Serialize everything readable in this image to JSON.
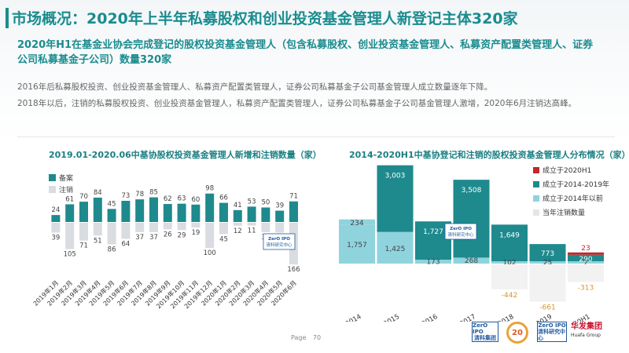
{
  "header": {
    "title": "市场概况：2020年上半年私募股权和创业投资基金管理人新登记主体320家",
    "subtitle": "2020年H1在基金业协会完成登记的股权投资基金管理人（包含私募股权、创业投资基金管理人、私募资产配置类管理人、证券公司私募基金子公司）数量320家",
    "para1": "2016年后私募股权投资、创业投资基金管理人、私募资产配置类管理人，证券公司私募基金子公司基金管理人成立数量逐年下降。",
    "para2": "2018年以后，注销的私募股权投资、创业投资基金管理人，私募资产配置类管理人，证券公司私募基金子公司基金管理人激增，2020年6月注销达高峰。"
  },
  "colors": {
    "teal": "#1e8a8d",
    "light_teal": "#8fd3dd",
    "gray_bar": "#d9dce0",
    "red": "#c0282d",
    "orange": "#e1a235",
    "title": "#1a8c8f"
  },
  "chart_data": [
    {
      "type": "bar",
      "title": "2019.01-2020.06中基协股权投资基金管理人新增和注销数量（家）",
      "legend_position": "top-left",
      "categories": [
        "2019年1月",
        "2019年2月",
        "2019年3月",
        "2019年4月",
        "2019年5月",
        "2019年6月",
        "2019年7月",
        "2019年8月",
        "2019年9月",
        "2019年10月",
        "2019年11月",
        "2019年12月",
        "2020年1月",
        "2020年2月",
        "2020年3月",
        "2020年4月",
        "2020年5月",
        "2020年6月"
      ],
      "series": [
        {
          "name": "备案",
          "color": "#1e8a8d",
          "values": [
            24,
            61,
            70,
            84,
            45,
            73,
            78,
            85,
            62,
            63,
            60,
            98,
            66,
            41,
            53,
            50,
            39,
            71
          ]
        },
        {
          "name": "注销",
          "color": "#d9dce0",
          "values": [
            39,
            105,
            71,
            51,
            86,
            64,
            37,
            37,
            26,
            29,
            19,
            100,
            45,
            12,
            11,
            37,
            39,
            166
          ]
        }
      ],
      "logo_text": "ZerO IPO 清科研究中心"
    },
    {
      "type": "bar",
      "title": "2014-2020H1中基协登记和注销的股权投资基金管理人分布情况（家）",
      "legend_position": "top-right",
      "categories": [
        "2014",
        "2015",
        "2016",
        "2017",
        "2018",
        "2019",
        "2020H1"
      ],
      "series": [
        {
          "name": "成立于2020H1",
          "color": "#c0282d",
          "values": [
            0,
            0,
            0,
            0,
            0,
            0,
            23
          ]
        },
        {
          "name": "成立于2014-2019年",
          "color": "#1e8a8d",
          "values": [
            0,
            3003,
            1727,
            3508,
            1649,
            773,
            290
          ]
        },
        {
          "name": "成立于2014年以前",
          "color": "#8fd3dd",
          "values": [
            1757,
            1425,
            173,
            268,
            102,
            25,
            7
          ]
        },
        {
          "name": "当年注销数量",
          "color": "#f2f2f2",
          "values": [
            234,
            0,
            0,
            0,
            -442,
            -661,
            -313
          ]
        }
      ],
      "logo_text": "ZerO IPO 清科研究中心"
    }
  ],
  "footer": {
    "page_label": "Page",
    "page_number": "70",
    "logo1": "ZerO IPO",
    "logo1_sub": "清科集团",
    "logo2": "20",
    "logo3": "ZerO IPO",
    "logo3_sub": "清科研究中心",
    "logo4": "华发集团",
    "logo4_sub": "Huafa Group"
  }
}
